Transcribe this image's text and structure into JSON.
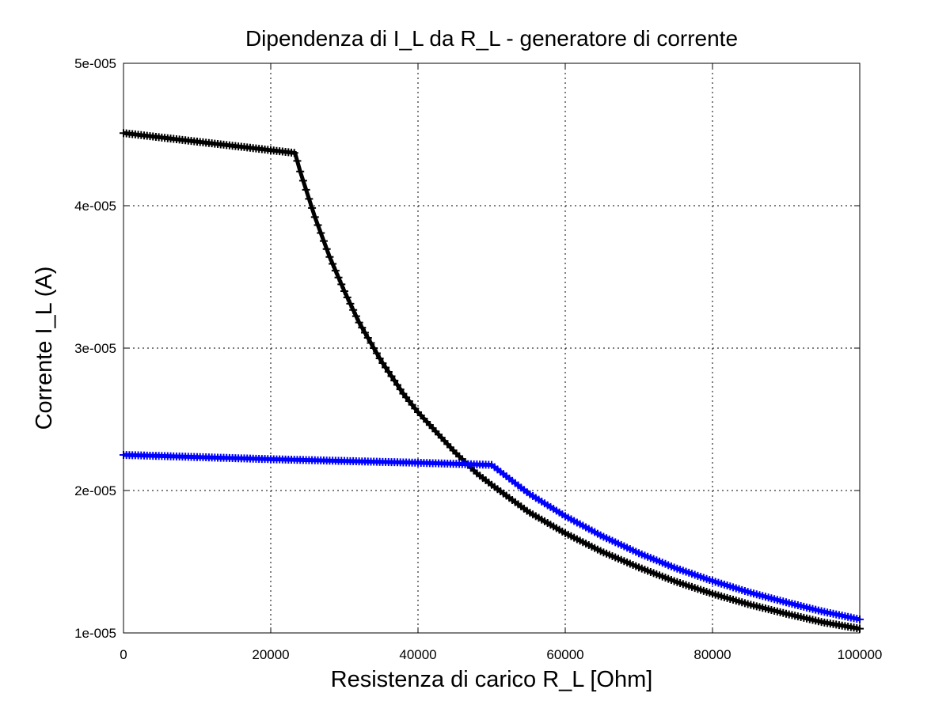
{
  "chart_data": {
    "type": "line",
    "title": "Dipendenza di I_L da R_L - generatore di corrente",
    "xlabel": "Resistenza di carico R_L [Ohm]",
    "ylabel": "Corrente I_L (A)",
    "xlim": [
      0,
      100000
    ],
    "ylim": [
      1e-05,
      5e-05
    ],
    "x_ticks": [
      0,
      20000,
      40000,
      60000,
      80000,
      100000
    ],
    "x_tick_labels": [
      "0",
      "20000",
      "40000",
      "60000",
      "80000",
      "100000"
    ],
    "y_ticks": [
      1e-05,
      2e-05,
      3e-05,
      4e-05,
      5e-05
    ],
    "y_tick_labels": [
      "1e-005",
      "2e-005",
      "3e-005",
      "4e-005",
      "5e-005"
    ],
    "grid": true,
    "grid_style": "dotted",
    "legend": "none",
    "series": [
      {
        "color": "#000000",
        "marker": "plus",
        "x": [
          0,
          23300,
          24000,
          26000,
          28000,
          30000,
          32000,
          35000,
          38000,
          40000,
          45000,
          48000,
          50000,
          55000,
          60000,
          65000,
          70000,
          75000,
          80000,
          85000,
          90000,
          95000,
          100000
        ],
        "values": [
          4.51e-05,
          4.37e-05,
          4.24e-05,
          3.92e-05,
          3.64e-05,
          3.4e-05,
          3.18e-05,
          2.91e-05,
          2.68e-05,
          2.55e-05,
          2.27e-05,
          2.12e-05,
          2.04e-05,
          1.85e-05,
          1.7e-05,
          1.57e-05,
          1.46e-05,
          1.36e-05,
          1.275e-05,
          1.2e-05,
          1.135e-05,
          1.075e-05,
          1.03e-05
        ]
      },
      {
        "color": "#0000ff",
        "marker": "plus",
        "x": [
          0,
          20000,
          40000,
          50000,
          55000,
          60000,
          65000,
          70000,
          75000,
          80000,
          85000,
          90000,
          95000,
          100000
        ],
        "values": [
          2.25e-05,
          2.22e-05,
          2.195e-05,
          2.18e-05,
          1.98e-05,
          1.82e-05,
          1.68e-05,
          1.56e-05,
          1.455e-05,
          1.365e-05,
          1.285e-05,
          1.215e-05,
          1.15e-05,
          1.095e-05
        ]
      }
    ]
  }
}
